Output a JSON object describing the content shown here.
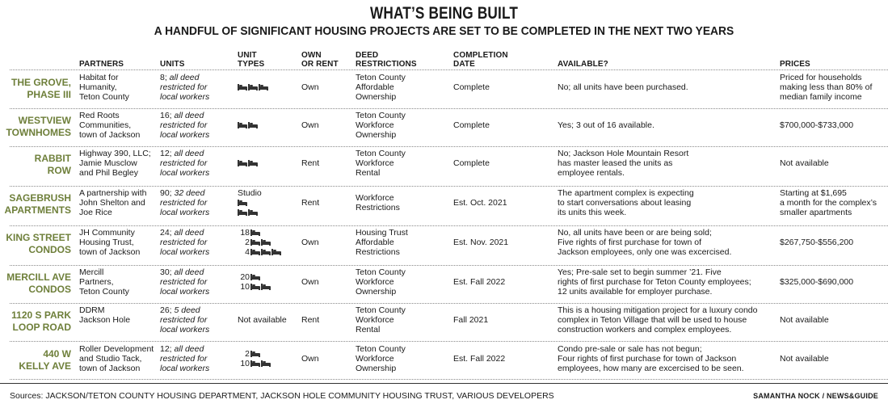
{
  "title": "WHAT’S BEING BUILT",
  "subtitle": "A HANDFUL OF SIGNIFICANT HOUSING PROJECTS ARE SET TO BE COMPLETED IN THE NEXT TWO YEARS",
  "headers": {
    "partners": "PARTNERS",
    "units": "UNITS",
    "unit_types_1": "UNIT",
    "unit_types_2": "TYPES",
    "own_rent_1": "OWN",
    "own_rent_2": "OR RENT",
    "deed_1": "DEED",
    "deed_2": "RESTRICTIONS",
    "completion_1": "COMPLETION",
    "completion_2": "DATE",
    "available": "AVAILABLE?",
    "prices": "PRICES"
  },
  "icon": "bed-icon",
  "accent_color": "#6e7f3a",
  "projects": [
    {
      "name": [
        "THE GROVE,",
        "PHASE III"
      ],
      "partners": [
        "Habitat for",
        "Humanity,",
        "Teton County"
      ],
      "units_num": "8;",
      "units_text": [
        " all deed",
        "restricted for",
        "local workers"
      ],
      "unit_types": [
        {
          "count": "",
          "beds": 3
        }
      ],
      "unit_label": "",
      "own_rent": "Own",
      "deed": [
        "Teton County",
        "Affordable",
        "Ownership"
      ],
      "completion": "Complete",
      "available": [
        "No; all units have been purchased."
      ],
      "prices": [
        "Priced for households",
        "making less than 80% of",
        "median family income"
      ]
    },
    {
      "name": [
        "WESTVIEW",
        "TOWNHOMES"
      ],
      "partners": [
        "Red Roots",
        "Communities,",
        "town of Jackson"
      ],
      "units_num": "16;",
      "units_text": [
        " all deed",
        "restricted for",
        "local workers"
      ],
      "unit_types": [
        {
          "count": "",
          "beds": 2
        }
      ],
      "unit_label": "",
      "own_rent": "Own",
      "deed": [
        "Teton County",
        "Workforce",
        "Ownership"
      ],
      "completion": "Complete",
      "available": [
        "Yes; 3 out of 16 available."
      ],
      "prices": [
        "$700,000-$733,000"
      ]
    },
    {
      "name": [
        "RABBIT",
        "ROW"
      ],
      "partners": [
        "Highway 390, LLC;",
        "Jamie Musclow",
        "and Phil Begley"
      ],
      "units_num": "12;",
      "units_text": [
        " all deed",
        "restricted for",
        "local workers"
      ],
      "unit_types": [
        {
          "count": "",
          "beds": 2
        }
      ],
      "unit_label": "",
      "own_rent": "Rent",
      "deed": [
        "Teton County",
        "Workforce",
        "Rental"
      ],
      "completion": "Complete",
      "available": [
        "No; Jackson Hole Mountain Resort",
        "has master leased the units as",
        "employee rentals."
      ],
      "prices": [
        "Not available"
      ]
    },
    {
      "name": [
        "SAGEBRUSH",
        "APARTMENTS"
      ],
      "partners": [
        "A partnership with",
        "John Shelton and",
        "Joe Rice"
      ],
      "units_num": "90;",
      "units_text": [
        " 32 deed",
        "restricted for",
        "local workers"
      ],
      "unit_types": [
        {
          "count": "",
          "beds": 1
        },
        {
          "count": "",
          "beds": 2
        }
      ],
      "unit_label": "Studio",
      "own_rent": "Rent",
      "deed": [
        "Workforce",
        "Restrictions"
      ],
      "completion": "Est. Oct. 2021",
      "available": [
        "The apartment complex is expecting",
        "to start conversations about leasing",
        "its units this week."
      ],
      "prices": [
        "Starting at $1,695",
        "a month for the complex’s",
        "smaller apartments"
      ]
    },
    {
      "name": [
        "KING STREET",
        "CONDOS"
      ],
      "partners": [
        "JH Community",
        "Housing Trust,",
        "town of Jackson"
      ],
      "units_num": "24;",
      "units_text": [
        " all deed",
        "restricted for",
        "local workers"
      ],
      "unit_types": [
        {
          "count": "18",
          "beds": 1
        },
        {
          "count": "2",
          "beds": 2
        },
        {
          "count": "4",
          "beds": 3
        }
      ],
      "unit_label": "",
      "own_rent": "Own",
      "deed": [
        "Housing Trust",
        "Affordable",
        "Restrictions"
      ],
      "completion": "Est. Nov. 2021",
      "available": [
        "No, all units have been or are being sold;",
        "Five rights of first purchase for town of",
        "Jackson employees, only one was excercised."
      ],
      "prices": [
        "$267,750-$556,200"
      ]
    },
    {
      "name": [
        "MERCILL AVE",
        "CONDOS"
      ],
      "partners": [
        "Mercill",
        "Partners,",
        "Teton County"
      ],
      "units_num": "30;",
      "units_text": [
        " all deed",
        "restricted for",
        "local workers"
      ],
      "unit_types": [
        {
          "count": "20",
          "beds": 1
        },
        {
          "count": "10",
          "beds": 2
        }
      ],
      "unit_label": "",
      "own_rent": "Own",
      "deed": [
        "Teton County",
        "Workforce",
        "Ownership"
      ],
      "completion": "Est. Fall 2022",
      "available": [
        "Yes; Pre-sale set to begin summer ’21. Five",
        "rights of first purchase for Teton County employees;",
        "12 units available for employer purchase."
      ],
      "prices": [
        "$325,000-$690,000"
      ]
    },
    {
      "name": [
        "1120 S PARK",
        "LOOP ROAD"
      ],
      "partners": [
        "DDRM",
        "Jackson Hole"
      ],
      "units_num": "26;",
      "units_text": [
        " 5 deed",
        "restricted for",
        "local workers"
      ],
      "unit_types": [],
      "unit_label": "Not available",
      "own_rent": "Rent",
      "deed": [
        "Teton County",
        "Workforce",
        "Rental"
      ],
      "completion": "Fall 2021",
      "available": [
        "This is a housing mitigation project for a luxury condo",
        "complex in Teton Village that will be used to house",
        "construction workers and complex employees."
      ],
      "prices": [
        "Not available"
      ]
    },
    {
      "name": [
        "440 W",
        "KELLY AVE"
      ],
      "partners": [
        "Roller Development",
        "and Studio Tack,",
        "town of Jackson"
      ],
      "units_num": "12;",
      "units_text": [
        " all deed",
        "restricted for",
        "local workers"
      ],
      "unit_types": [
        {
          "count": "2",
          "beds": 1
        },
        {
          "count": "10",
          "beds": 2
        }
      ],
      "unit_label": "",
      "own_rent": "Own",
      "deed": [
        "Teton County",
        "Workforce",
        "Ownership"
      ],
      "completion": "Est. Fall 2022",
      "available": [
        "Condo pre-sale or sale has not begun;",
        "Four rights of first purchase for town of Jackson",
        "employees, how many are excercised to be seen."
      ],
      "prices": [
        "Not available"
      ]
    }
  ],
  "sources": "Sources: JACKSON/TETON COUNTY HOUSING DEPARTMENT, JACKSON HOLE COMMUNITY HOUSING TRUST, VARIOUS DEVELOPERS",
  "credit": "SAMANTHA NOCK / NEWS&GUIDE"
}
